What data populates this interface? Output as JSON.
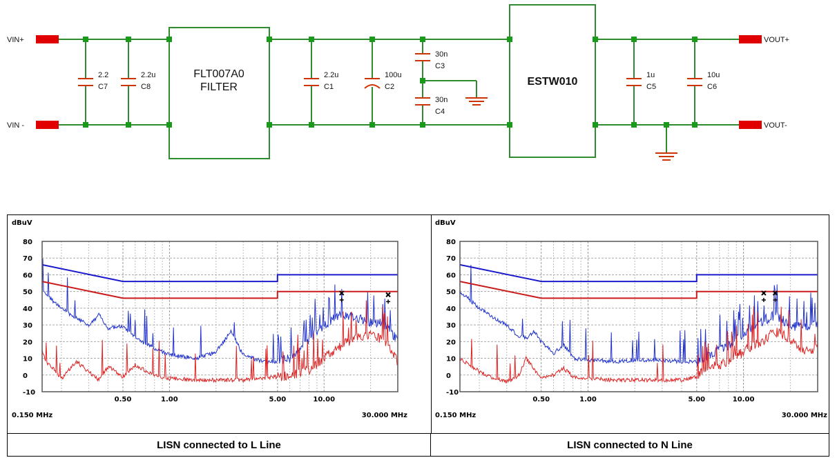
{
  "schematic": {
    "ports": {
      "vin_pos": "VIN+",
      "vin_neg": "VIN -",
      "vout_pos": "VOUT+",
      "vout_neg": "VOUT-"
    },
    "filter_block": {
      "line1": "FLT007A0",
      "line2": "FILTER"
    },
    "converter_block": {
      "label": "ESTW010"
    },
    "capacitors": [
      {
        "ref": "C7",
        "value": "2.2"
      },
      {
        "ref": "C8",
        "value": "2.2u"
      },
      {
        "ref": "C1",
        "value": "2.2u"
      },
      {
        "ref": "C2",
        "value": "100u"
      },
      {
        "ref": "C3",
        "value": "30n"
      },
      {
        "ref": "C4",
        "value": "30n"
      },
      {
        "ref": "C5",
        "value": "1u"
      },
      {
        "ref": "C6",
        "value": "10u"
      }
    ],
    "colors": {
      "wire": "#2e8b2e",
      "node": "#1a9a1a",
      "port": "#e00000",
      "ground": "#cc3300"
    }
  },
  "chart_data": [
    {
      "type": "line",
      "ylabel": "dBuV",
      "yticks": [
        "80",
        "70",
        "60",
        "50",
        "40",
        "30",
        "20",
        "10",
        "0",
        "-10"
      ],
      "ylim": [
        -10,
        80
      ],
      "xscale": "log",
      "xlim": [
        0.15,
        30.0
      ],
      "xticks": [
        "0.50",
        "1.00",
        "5.00",
        "10.00"
      ],
      "x_start_label": "0.150 MHz",
      "x_end_label": "30.000 MHz",
      "grid": true,
      "limit_lines": [
        {
          "color": "#1a1acc",
          "x": [
            0.15,
            0.5,
            5.0,
            5.0,
            30.0
          ],
          "y": [
            66,
            56,
            56,
            60,
            60
          ]
        },
        {
          "color": "#cc1a1a",
          "x": [
            0.15,
            0.5,
            5.0,
            5.0,
            30.0
          ],
          "y": [
            56,
            46,
            46,
            50,
            50
          ]
        }
      ],
      "series": [
        {
          "color": "#2233cc",
          "x": [
            0.15,
            0.2,
            0.25,
            0.3,
            0.35,
            0.4,
            0.5,
            0.6,
            0.8,
            1.0,
            1.5,
            2.0,
            2.5,
            3.0,
            4.0,
            5.0,
            6.0,
            8.0,
            10.0,
            13.0,
            16.0,
            20.0,
            25.0,
            30.0
          ],
          "y": [
            50,
            40,
            34,
            30,
            36,
            28,
            29,
            22,
            16,
            12,
            10,
            14,
            26,
            12,
            8,
            8,
            10,
            22,
            30,
            36,
            34,
            32,
            30,
            20
          ]
        },
        {
          "color": "#dd2222",
          "x": [
            0.15,
            0.16,
            0.18,
            0.2,
            0.25,
            0.3,
            0.35,
            0.4,
            0.5,
            0.6,
            0.8,
            1.0,
            1.5,
            2.0,
            3.0,
            4.0,
            5.0,
            6.0,
            8.0,
            10.0,
            13.0,
            16.0,
            20.0,
            25.0,
            30.0
          ],
          "y": [
            15,
            8,
            3,
            -2,
            8,
            2,
            -3,
            5,
            -1,
            6,
            0,
            -2,
            -3,
            -3,
            -3,
            -2,
            -1,
            0,
            3,
            10,
            18,
            22,
            25,
            20,
            8
          ]
        }
      ],
      "markers": [
        {
          "x": 13.0,
          "y": 47
        },
        {
          "x": 26.0,
          "y": 46
        }
      ]
    },
    {
      "type": "line",
      "ylabel": "dBuV",
      "yticks": [
        "80",
        "70",
        "60",
        "50",
        "40",
        "30",
        "20",
        "10",
        "0",
        "-10"
      ],
      "ylim": [
        -10,
        80
      ],
      "xscale": "log",
      "xlim": [
        0.15,
        30.0
      ],
      "xticks": [
        "0.50",
        "1.00",
        "5.00",
        "10.00"
      ],
      "x_start_label": "0.150 MHz",
      "x_end_label": "30.000 MHz",
      "grid": true,
      "limit_lines": [
        {
          "color": "#1a1acc",
          "x": [
            0.15,
            0.5,
            5.0,
            5.0,
            30.0
          ],
          "y": [
            66,
            56,
            56,
            60,
            60
          ]
        },
        {
          "color": "#cc1a1a",
          "x": [
            0.15,
            0.5,
            5.0,
            5.0,
            30.0
          ],
          "y": [
            56,
            46,
            46,
            50,
            50
          ]
        }
      ],
      "series": [
        {
          "color": "#2233cc",
          "x": [
            0.15,
            0.2,
            0.25,
            0.3,
            0.35,
            0.4,
            0.45,
            0.5,
            0.6,
            0.7,
            0.8,
            1.0,
            1.5,
            2.0,
            3.0,
            4.0,
            5.0,
            6.0,
            8.0,
            10.0,
            13.0,
            16.0,
            20.0,
            25.0,
            30.0
          ],
          "y": [
            50,
            40,
            34,
            30,
            24,
            22,
            26,
            20,
            13,
            18,
            10,
            9,
            8,
            9,
            9,
            8,
            8,
            12,
            18,
            24,
            32,
            36,
            30,
            28,
            30
          ]
        },
        {
          "color": "#dd2222",
          "x": [
            0.15,
            0.18,
            0.2,
            0.25,
            0.3,
            0.35,
            0.4,
            0.5,
            0.6,
            0.7,
            0.8,
            1.0,
            1.5,
            2.0,
            3.0,
            4.0,
            5.0,
            6.0,
            8.0,
            10.0,
            13.0,
            16.0,
            20.0,
            25.0,
            30.0
          ],
          "y": [
            10,
            5,
            2,
            -2,
            -4,
            -2,
            10,
            -2,
            0,
            4,
            -1,
            -2,
            -3,
            -3,
            -3,
            -3,
            -1,
            4,
            8,
            14,
            20,
            26,
            22,
            14,
            16
          ]
        }
      ],
      "markers": [
        {
          "x": 13.5,
          "y": 47
        },
        {
          "x": 16.0,
          "y": 47
        }
      ]
    }
  ],
  "captions": {
    "left": "LISN connected to L Line",
    "right": "LISN connected to N Line"
  }
}
